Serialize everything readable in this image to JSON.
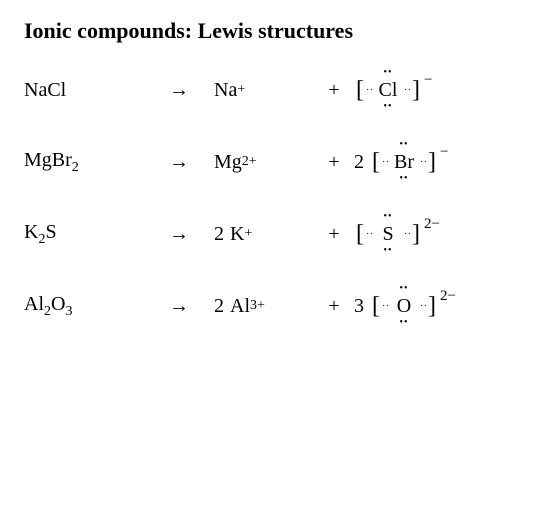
{
  "title": "Ionic compounds: Lewis structures",
  "rows": [
    {
      "compound_base": "NaCl",
      "compound_sub": "",
      "arrow": "→",
      "cation_coef": "",
      "cation_base": "Na",
      "cation_charge": "+",
      "plus": "+",
      "anion_coef": "",
      "anion_symbol": "Cl",
      "anion_charge": "−",
      "dots_top": "••",
      "dots_bottom": "••",
      "dots_left": ":",
      "dots_right": ":"
    },
    {
      "compound_base": "MgBr",
      "compound_sub": "2",
      "arrow": "→",
      "cation_coef": "",
      "cation_base": "Mg",
      "cation_charge": "2+",
      "plus": "+",
      "anion_coef": "2",
      "anion_symbol": "Br",
      "anion_charge": "−",
      "dots_top": "••",
      "dots_bottom": "••",
      "dots_left": ":",
      "dots_right": ":"
    },
    {
      "compound_base": "K",
      "compound_sub": "2",
      "compound_tail": "S",
      "arrow": "→",
      "cation_coef": "2",
      "cation_base": "K",
      "cation_charge": "+",
      "plus": "+",
      "anion_coef": "",
      "anion_symbol": "S",
      "anion_charge": "2−",
      "dots_top": "••",
      "dots_bottom": "••",
      "dots_left": ":",
      "dots_right": ":"
    },
    {
      "compound_base": "Al",
      "compound_sub": "2",
      "compound_tail": "O",
      "compound_sub2": "3",
      "arrow": "→",
      "cation_coef": "2",
      "cation_base": "Al",
      "cation_charge": "3+",
      "plus": "+",
      "anion_coef": "3",
      "anion_symbol": "O",
      "anion_charge": "2−",
      "dots_top": "••",
      "dots_bottom": "••",
      "dots_left": ":",
      "dots_right": ":"
    }
  ],
  "brackets": {
    "open": "[",
    "close": "]"
  }
}
